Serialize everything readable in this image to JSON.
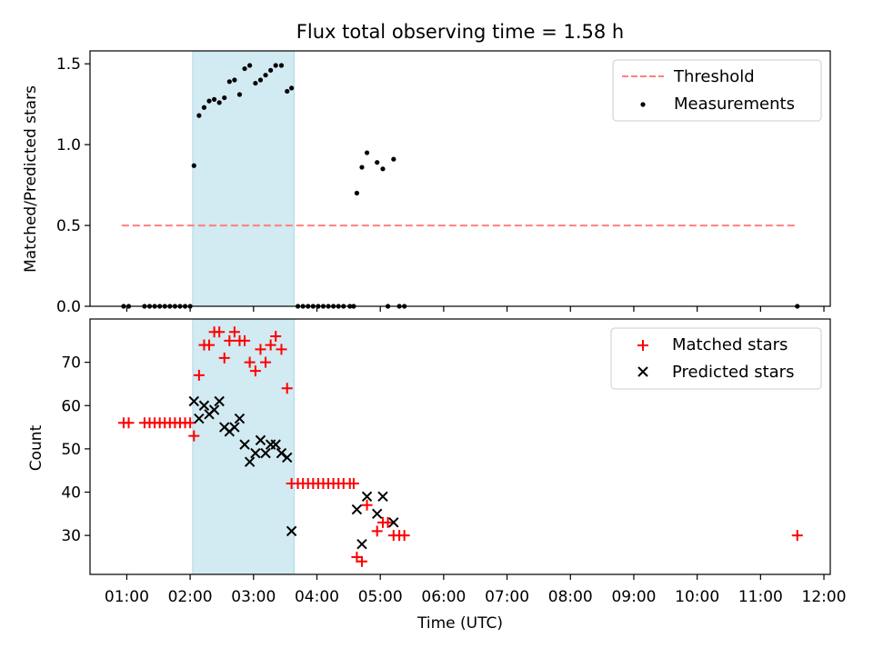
{
  "chart_data": [
    {
      "type": "scatter",
      "title": "Flux total observing time = 1.58 h",
      "xlabel": "",
      "ylabel": "Matched/Predicted stars",
      "ylim": [
        0,
        1.58
      ],
      "xlim_hours": [
        0.42,
        12.1
      ],
      "yticks": [
        0,
        0.5,
        1.0,
        1.5
      ],
      "ytick_labels": [
        "0.0",
        "0.5",
        "1.0",
        "1.5"
      ],
      "grid": false,
      "legend_position": "top-right",
      "shaded_region_hours": [
        2.04,
        3.64
      ],
      "series": [
        {
          "name": "Threshold",
          "kind": "dashed-line",
          "color": "#ff7f7f",
          "x_hours": [
            0.92,
            11.58
          ],
          "y": [
            0.5,
            0.5
          ]
        },
        {
          "name": "Measurements",
          "kind": "dot",
          "color": "#000000",
          "x_hours": [
            0.95,
            1.03,
            1.28,
            1.36,
            1.44,
            1.52,
            1.6,
            1.68,
            1.76,
            1.84,
            1.92,
            2.0,
            2.06,
            2.14,
            2.22,
            2.3,
            2.38,
            2.46,
            2.54,
            2.62,
            2.7,
            2.78,
            2.86,
            2.94,
            3.03,
            3.11,
            3.19,
            3.27,
            3.35,
            3.44,
            3.53,
            3.6,
            3.7,
            3.78,
            3.86,
            3.94,
            4.02,
            4.1,
            4.18,
            4.26,
            4.34,
            4.42,
            4.52,
            4.58,
            4.63,
            4.71,
            4.79,
            4.95,
            5.04,
            5.12,
            5.21,
            5.3,
            5.38,
            11.58
          ],
          "y": [
            0,
            0,
            0,
            0,
            0,
            0,
            0,
            0,
            0,
            0,
            0,
            0,
            0.87,
            1.18,
            1.23,
            1.27,
            1.28,
            1.26,
            1.29,
            1.39,
            1.4,
            1.31,
            1.47,
            1.49,
            1.38,
            1.4,
            1.43,
            1.46,
            1.49,
            1.49,
            1.33,
            1.35,
            0,
            0,
            0,
            0,
            0,
            0,
            0,
            0,
            0,
            0,
            0,
            0,
            0.7,
            0.86,
            0.95,
            0.89,
            0.85,
            0,
            0.91,
            0,
            0,
            0
          ]
        }
      ]
    },
    {
      "type": "scatter",
      "title": "",
      "xlabel": "Time (UTC)",
      "ylabel": "Count",
      "ylim": [
        21,
        80
      ],
      "xlim_hours": [
        0.42,
        12.1
      ],
      "yticks": [
        30,
        40,
        50,
        60,
        70
      ],
      "ytick_labels": [
        "30",
        "40",
        "50",
        "60",
        "70"
      ],
      "xticks_hours": [
        1,
        2,
        3,
        4,
        5,
        6,
        7,
        8,
        9,
        10,
        11,
        12
      ],
      "xtick_labels": [
        "01:00",
        "02:00",
        "03:00",
        "04:00",
        "05:00",
        "06:00",
        "07:00",
        "08:00",
        "09:00",
        "10:00",
        "11:00",
        "12:00"
      ],
      "grid": false,
      "legend_position": "top-right",
      "shaded_region_hours": [
        2.04,
        3.64
      ],
      "series": [
        {
          "name": "Matched stars",
          "kind": "plus",
          "color": "#ff0000",
          "x_hours": [
            0.95,
            1.03,
            1.28,
            1.36,
            1.44,
            1.52,
            1.6,
            1.68,
            1.76,
            1.84,
            1.92,
            2.0,
            2.06,
            2.14,
            2.22,
            2.3,
            2.38,
            2.46,
            2.54,
            2.62,
            2.7,
            2.78,
            2.86,
            2.94,
            3.03,
            3.11,
            3.19,
            3.27,
            3.35,
            3.44,
            3.53,
            3.6,
            3.7,
            3.78,
            3.86,
            3.94,
            4.02,
            4.1,
            4.18,
            4.26,
            4.34,
            4.42,
            4.52,
            4.58,
            4.63,
            4.71,
            4.79,
            4.95,
            5.04,
            5.12,
            5.21,
            5.3,
            5.38,
            11.58
          ],
          "y": [
            56,
            56,
            56,
            56,
            56,
            56,
            56,
            56,
            56,
            56,
            56,
            56,
            53,
            67,
            74,
            74,
            77,
            77,
            71,
            75,
            77,
            75,
            75,
            70,
            68,
            73,
            70,
            74,
            76,
            73,
            64,
            42,
            42,
            42,
            42,
            42,
            42,
            42,
            42,
            42,
            42,
            42,
            42,
            42,
            25,
            24,
            37,
            31,
            33,
            33,
            30,
            30,
            30,
            30
          ]
        },
        {
          "name": "Predicted stars",
          "kind": "x",
          "color": "#000000",
          "x_hours": [
            2.06,
            2.14,
            2.22,
            2.3,
            2.38,
            2.46,
            2.54,
            2.62,
            2.7,
            2.78,
            2.86,
            2.94,
            3.03,
            3.11,
            3.19,
            3.27,
            3.35,
            3.44,
            3.53,
            3.6,
            4.63,
            4.71,
            4.79,
            4.95,
            5.04,
            5.21
          ],
          "y": [
            61,
            57,
            60,
            58,
            59,
            61,
            55,
            54,
            55,
            57,
            51,
            47,
            49,
            52,
            49,
            51,
            51,
            49,
            48,
            31,
            36,
            28,
            39,
            35,
            39,
            33
          ]
        }
      ]
    }
  ],
  "colors": {
    "shade": "#add8e6",
    "threshold": "#ff7f7f",
    "matched": "#ff0000",
    "predicted": "#000000",
    "measurement": "#000000"
  }
}
